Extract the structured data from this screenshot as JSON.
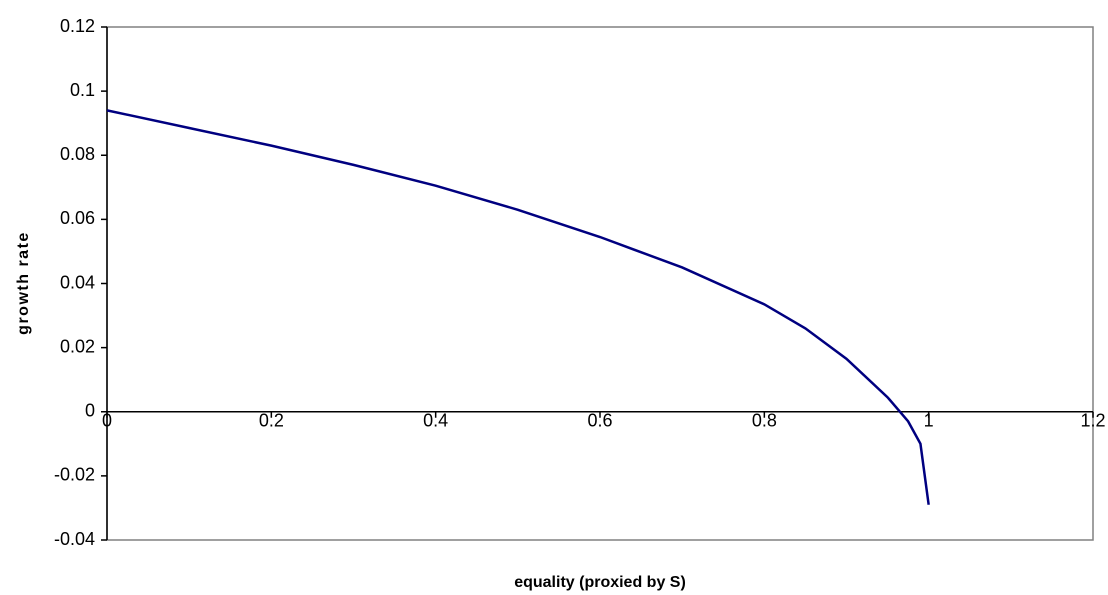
{
  "chart_data": {
    "type": "line",
    "x_label": "equality (proxied by S)",
    "y_label": "growth rate",
    "x": [
      0,
      0.1,
      0.2,
      0.3,
      0.4,
      0.5,
      0.6,
      0.7,
      0.8,
      0.85,
      0.9,
      0.95,
      0.975,
      0.99,
      1.0
    ],
    "series": [
      {
        "color": "#000080",
        "values": [
          0.094,
          0.0885,
          0.083,
          0.077,
          0.0705,
          0.063,
          0.0545,
          0.045,
          0.0335,
          0.026,
          0.0165,
          0.0045,
          -0.003,
          -0.01,
          -0.029
        ]
      }
    ],
    "xlim": [
      0,
      1.2
    ],
    "xticks": [
      0,
      0.2,
      0.4,
      0.6,
      0.8,
      1,
      1.2
    ],
    "ylim": [
      -0.04,
      0.12
    ],
    "yticks": [
      -0.04,
      -0.02,
      0,
      0.02,
      0.04,
      0.06,
      0.08,
      0.1,
      0.12
    ]
  }
}
